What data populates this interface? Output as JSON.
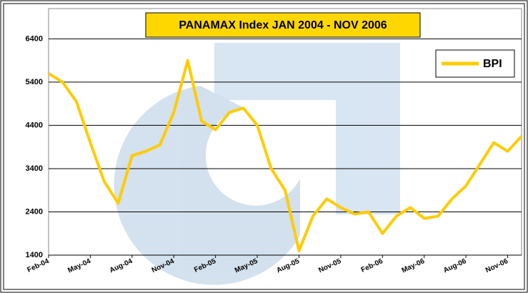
{
  "chart_data": {
    "type": "line",
    "title": "PANAMAX Index JAN 2004 - NOV 2006",
    "x": [
      "2004-02",
      "2004-03",
      "2004-04",
      "2004-05",
      "2004-06",
      "2004-07",
      "2004-08",
      "2004-09",
      "2004-10",
      "2004-11",
      "2004-12",
      "2005-01",
      "2005-02",
      "2005-03",
      "2005-04",
      "2005-05",
      "2005-06",
      "2005-07",
      "2005-08",
      "2005-09",
      "2005-10",
      "2005-11",
      "2005-12",
      "2006-01",
      "2006-02",
      "2006-03",
      "2006-04",
      "2006-05",
      "2006-06",
      "2006-07",
      "2006-08",
      "2006-09",
      "2006-10",
      "2006-11",
      "2006-12"
    ],
    "series": [
      {
        "name": "BPI",
        "color": "#ffcc00",
        "values": [
          5600,
          5400,
          4950,
          4000,
          3100,
          2600,
          3700,
          3800,
          3950,
          4700,
          5900,
          4500,
          4300,
          4700,
          4800,
          4400,
          3400,
          2900,
          1500,
          2300,
          2700,
          2500,
          2350,
          2400,
          1900,
          2300,
          2500,
          2250,
          2300,
          2700,
          3000,
          3500,
          4000,
          3800,
          4150
        ]
      }
    ],
    "xlim": [
      "2004-02",
      "2006-12"
    ],
    "xticks": [
      {
        "value": "2004-02",
        "label": "Feb-04"
      },
      {
        "value": "2004-05",
        "label": "May-04"
      },
      {
        "value": "2004-08",
        "label": "Aug-04"
      },
      {
        "value": "2004-11",
        "label": "Nov-04"
      },
      {
        "value": "2005-02",
        "label": "Feb-05"
      },
      {
        "value": "2005-05",
        "label": "May-05"
      },
      {
        "value": "2005-08",
        "label": "Aug-05"
      },
      {
        "value": "2005-11",
        "label": "Nov-05"
      },
      {
        "value": "2006-02",
        "label": "Feb-06"
      },
      {
        "value": "2006-05",
        "label": "May-06"
      },
      {
        "value": "2006-08",
        "label": "Aug-06"
      },
      {
        "value": "2006-11",
        "label": "Nov-06"
      }
    ],
    "ylim": [
      1400,
      7100
    ],
    "yticks": [
      1400,
      2400,
      3400,
      4400,
      5400,
      6400
    ],
    "grid": true,
    "legend": "top-right"
  }
}
